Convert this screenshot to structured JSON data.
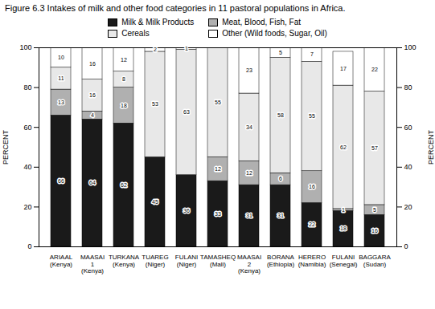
{
  "chart_data": {
    "type": "bar",
    "stacked": true,
    "data_labels": true,
    "grid": false,
    "legend": "top",
    "title": "Figure 6.3 Intakes of milk and other food categories in 11 pastoral populations in Africa.",
    "categories": [
      "ARIAAL\n(Kenya)",
      "MAASAI\n1\n(Kenya)",
      "TURKANA\n(Kenya)",
      "TUAREG\n(Niger)",
      "FULANI\n(Niger)",
      "TAMASHEQ\n(Mali)",
      "MAASAI\n2\n(Kenya)",
      "BORANA\n(Ethiopia)",
      "HERERO\n(Namibia)",
      "FULANI\n(Senegal)",
      "BAGGARA\n(Sudan)"
    ],
    "series": [
      {
        "name": "Milk & Milk Products",
        "color": "#1a1a1a",
        "values": [
          66,
          64,
          62,
          45,
          36,
          33,
          31,
          31,
          22,
          18,
          16
        ]
      },
      {
        "name": "Meat, Blood, Fish, Fat",
        "color": "#b0b0b0",
        "values": [
          13,
          4,
          18,
          0,
          0,
          12,
          12,
          6,
          16,
          1,
          5
        ]
      },
      {
        "name": "Cereals",
        "color": "#e8e8e8",
        "values": [
          11,
          16,
          8,
          53,
          63,
          55,
          34,
          58,
          55,
          62,
          57
        ]
      },
      {
        "name": "Other (Wild foods, Sugar, Oil)",
        "color": "#ffffff",
        "values": [
          10,
          16,
          12,
          2,
          1,
          0,
          23,
          5,
          7,
          17,
          22
        ]
      }
    ],
    "ylabel": "PERCENT",
    "ylim": [
      0,
      100
    ],
    "yticks": [
      0,
      20,
      40,
      60,
      80,
      100
    ],
    "y2label": "PERCENT",
    "y2lim": [
      0,
      100
    ],
    "y2ticks": [
      0,
      20,
      40,
      60,
      80,
      100
    ]
  }
}
